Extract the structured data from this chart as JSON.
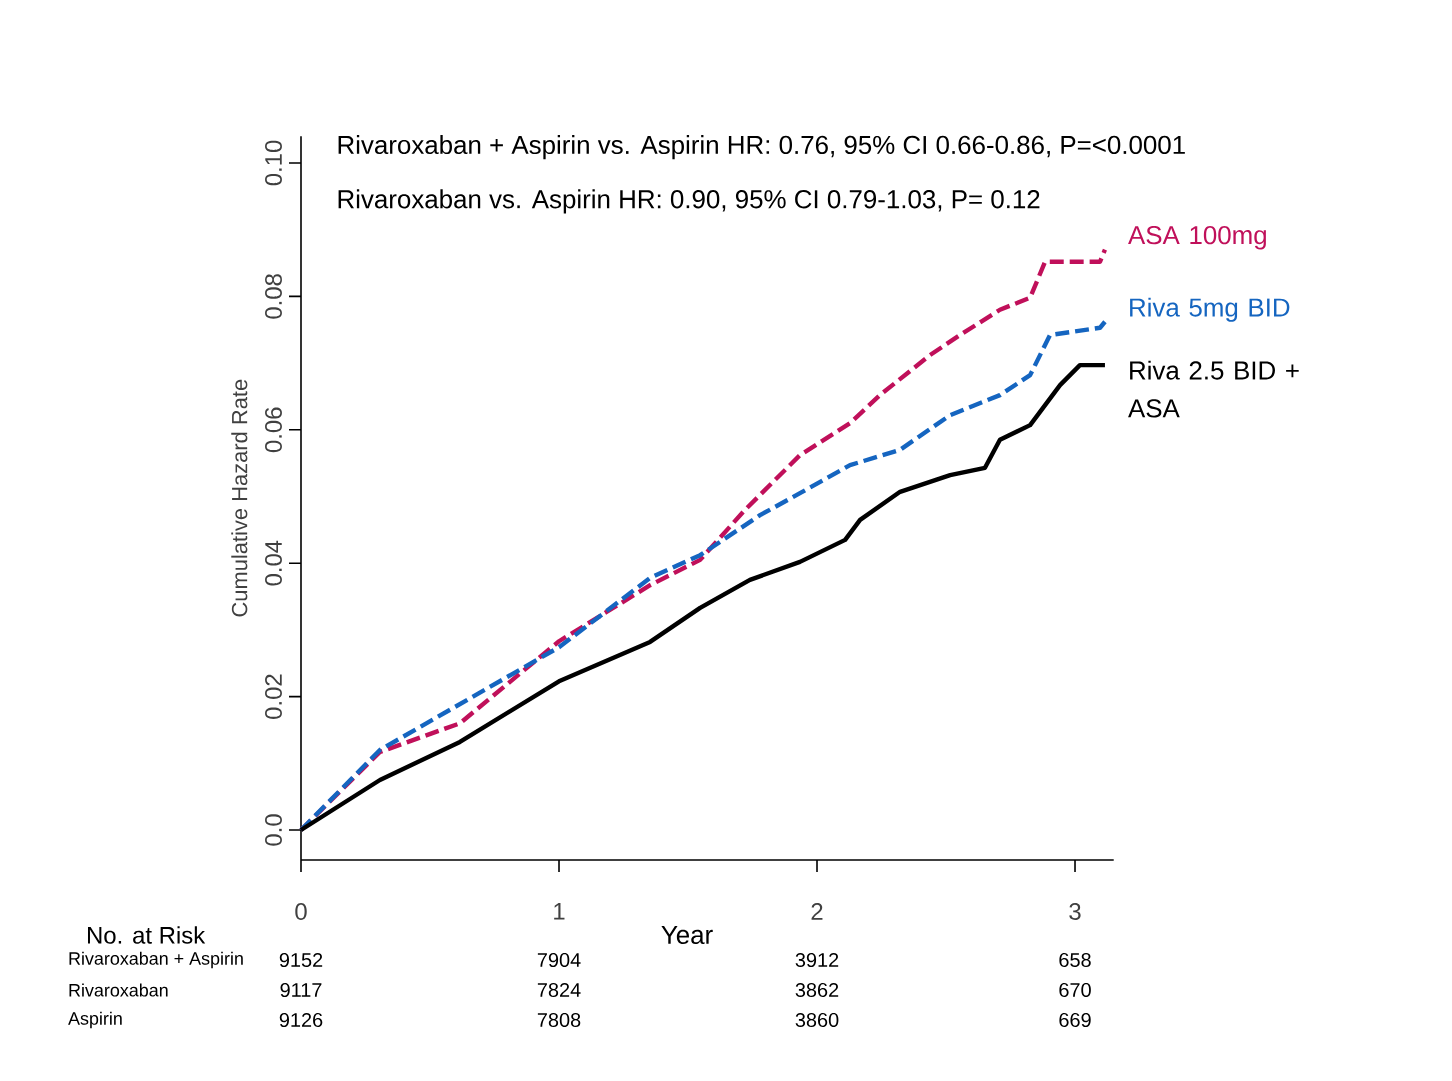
{
  "chart_data": {
    "type": "line",
    "xlabel": "Year",
    "ylabel": "Cumulative Hazard Rate",
    "xlim": [
      0,
      3.15
    ],
    "xticks": [
      0,
      1,
      2,
      3
    ],
    "ylim": [
      -0.0045,
      0.104
    ],
    "yticks": [
      {
        "value": 0,
        "label": "0.0"
      },
      0.02,
      0.04,
      0.06,
      0.08,
      {
        "value": 0.1,
        "label": "0.10"
      }
    ],
    "series": [
      {
        "name": "ASA 100mg",
        "color": "#c0105a",
        "line_style": "dashed",
        "x": [
          0,
          0.306,
          0.616,
          1.0,
          1.353,
          1.547,
          1.721,
          1.934,
          2.128,
          2.244,
          2.438,
          2.554,
          2.709,
          2.826,
          2.884,
          3.097,
          3.116
        ],
        "values": [
          0,
          0.0117,
          0.016,
          0.0283,
          0.0367,
          0.0405,
          0.048,
          0.0562,
          0.061,
          0.0652,
          0.0712,
          0.0742,
          0.078,
          0.0798,
          0.0852,
          0.0852,
          0.087
        ]
      },
      {
        "name": "Riva 5mg BID",
        "color": "#1565c0",
        "line_style": "dashed",
        "x": [
          0,
          0.306,
          1.0,
          1.353,
          1.547,
          1.779,
          1.934,
          2.128,
          2.322,
          2.516,
          2.709,
          2.826,
          2.903,
          3.097,
          3.116
        ],
        "values": [
          0,
          0.012,
          0.0274,
          0.0378,
          0.0412,
          0.0472,
          0.0505,
          0.0547,
          0.057,
          0.0622,
          0.0652,
          0.0682,
          0.0742,
          0.0753,
          0.0762
        ]
      },
      {
        "name": "Riva 2.5 BID + ASA",
        "color": "#000000",
        "line_style": "solid",
        "x": [
          0,
          0.306,
          0.616,
          1.0,
          1.353,
          1.547,
          1.74,
          1.934,
          2.109,
          2.167,
          2.322,
          2.516,
          2.651,
          2.709,
          2.826,
          2.942,
          3.019,
          3.116
        ],
        "values": [
          0,
          0.0075,
          0.0132,
          0.0223,
          0.0282,
          0.0333,
          0.0375,
          0.0402,
          0.0435,
          0.0465,
          0.0507,
          0.0532,
          0.0543,
          0.0585,
          0.0607,
          0.0667,
          0.0697,
          0.0697
        ]
      }
    ],
    "annotations": [
      "Rivaroxaban + Aspirin vs. Aspirin    HR: 0.76, 95% CI 0.66-0.86,  P=<0.0001",
      "Rivaroxaban vs. Aspirin    HR: 0.90, 95% CI 0.79-1.03,  P= 0.12",
      "No. at Risk",
      "Rivaroxaban + Aspirin",
      "9152",
      "7904",
      "3912",
      "658",
      "Rivaroxaban",
      "9117",
      "7824",
      "3862",
      "670",
      "Aspirin",
      "9126",
      "7808",
      "3860",
      "669"
    ]
  }
}
